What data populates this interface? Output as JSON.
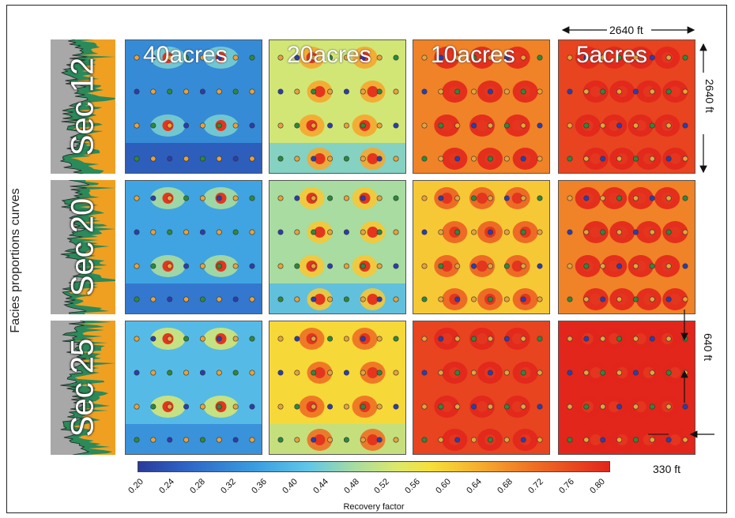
{
  "figure": {
    "y_axis_label": "Facies proportions curves",
    "colorbar_label": "Recovery factor",
    "colorbar_ticks": [
      "0.20",
      "0.24",
      "0.28",
      "0.32",
      "0.36",
      "0.40",
      "0.44",
      "0.48",
      "0.52",
      "0.56",
      "0.60",
      "0.64",
      "0.68",
      "0.72",
      "0.76",
      "0.80"
    ],
    "colorbar_range": [
      0.2,
      0.8
    ],
    "dimensions": {
      "width_label": "2640 ft",
      "height_label": "2640 ft",
      "spacing_label": "640 ft",
      "row_spacing_label": "330 ft"
    }
  },
  "sections": [
    {
      "label": "Sec 12"
    },
    {
      "label": "Sec 20"
    },
    {
      "label": "Sec 25"
    }
  ],
  "densities": [
    {
      "label": "40acres",
      "level": 0.3
    },
    {
      "label": "20acres",
      "level": 0.5
    },
    {
      "label": "10acres",
      "level": 0.66
    },
    {
      "label": "5acres",
      "level": 0.72
    }
  ],
  "section_levels": [
    [
      0.32,
      0.52,
      0.68,
      0.76
    ],
    [
      0.36,
      0.48,
      0.6,
      0.68
    ],
    [
      0.4,
      0.58,
      0.76,
      0.8
    ]
  ],
  "colors": {
    "low": "#2a3a9a",
    "mid": "#f6e03a",
    "high": "#e2261c",
    "well_blue": "#2b3db0",
    "well_green": "#2a8a3a",
    "well_orange": "#e8a23a"
  }
}
